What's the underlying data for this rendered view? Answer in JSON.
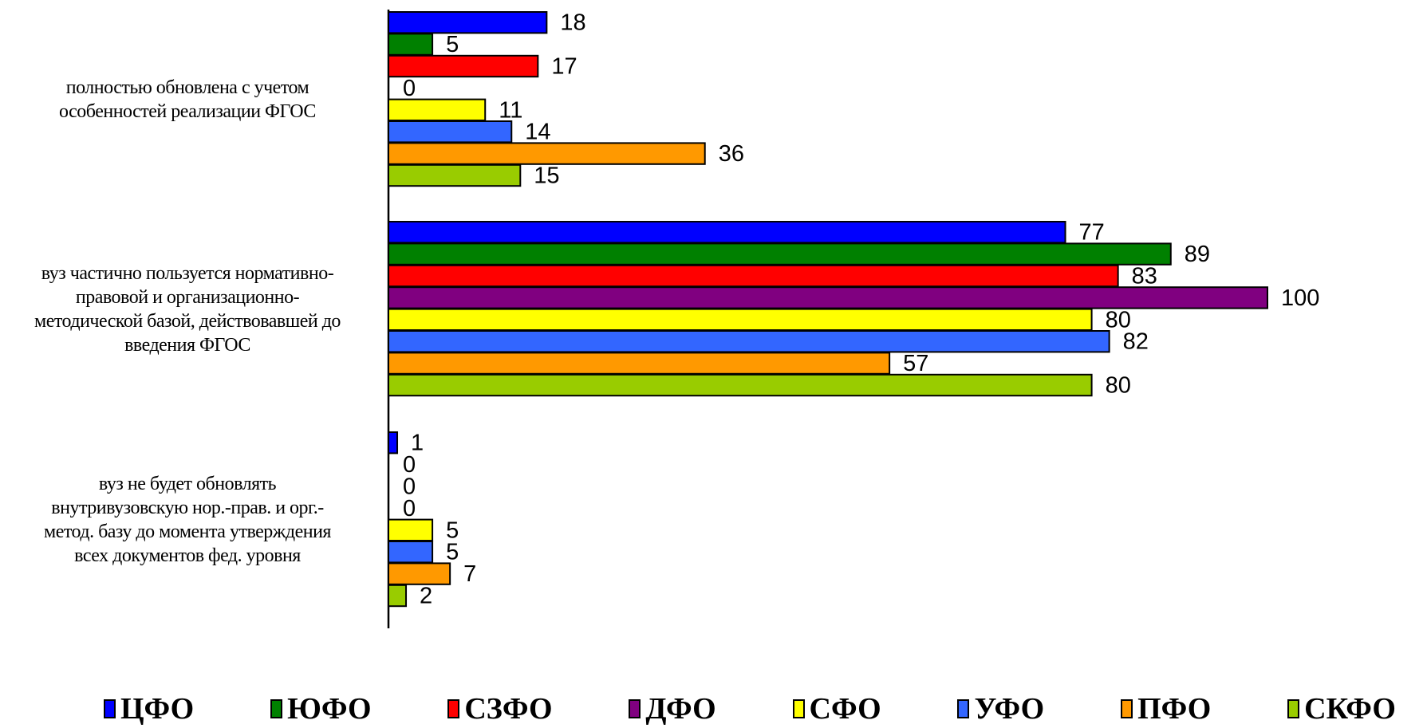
{
  "chart_data": {
    "type": "bar",
    "orientation": "horizontal",
    "title": "",
    "xlabel": "",
    "ylabel": "",
    "xlim": [
      0,
      100
    ],
    "grid": false,
    "legend_position": "bottom",
    "categories": [
      [
        "полностью обновлена с учетом",
        "особенностей реализации ФГОС"
      ],
      [
        "вуз частично пользуется нормативно-",
        "правовой и организационно-",
        "методической базой, действовавшей до",
        "введения ФГОС"
      ],
      [
        "вуз не будет обновлять",
        "внутривузовскую нор.-прав. и орг.-",
        "метод. базу до момента утверждения",
        "всех документов фед. уровня"
      ]
    ],
    "series": [
      {
        "name": "ЦФО",
        "color": "#0000FF",
        "values": [
          18,
          77,
          1
        ]
      },
      {
        "name": "ЮФО",
        "color": "#008000",
        "values": [
          5,
          89,
          0
        ]
      },
      {
        "name": "СЗФО",
        "color": "#FF0000",
        "values": [
          17,
          83,
          0
        ]
      },
      {
        "name": "ДФО",
        "color": "#800080",
        "values": [
          0,
          100,
          0
        ]
      },
      {
        "name": "СФО",
        "color": "#FFFF00",
        "values": [
          11,
          80,
          5
        ]
      },
      {
        "name": "УФО",
        "color": "#3366FF",
        "values": [
          14,
          82,
          5
        ]
      },
      {
        "name": "ПФО",
        "color": "#FF9900",
        "values": [
          36,
          57,
          7
        ]
      },
      {
        "name": "СКФО",
        "color": "#99CC00",
        "values": [
          15,
          80,
          2
        ]
      }
    ]
  }
}
